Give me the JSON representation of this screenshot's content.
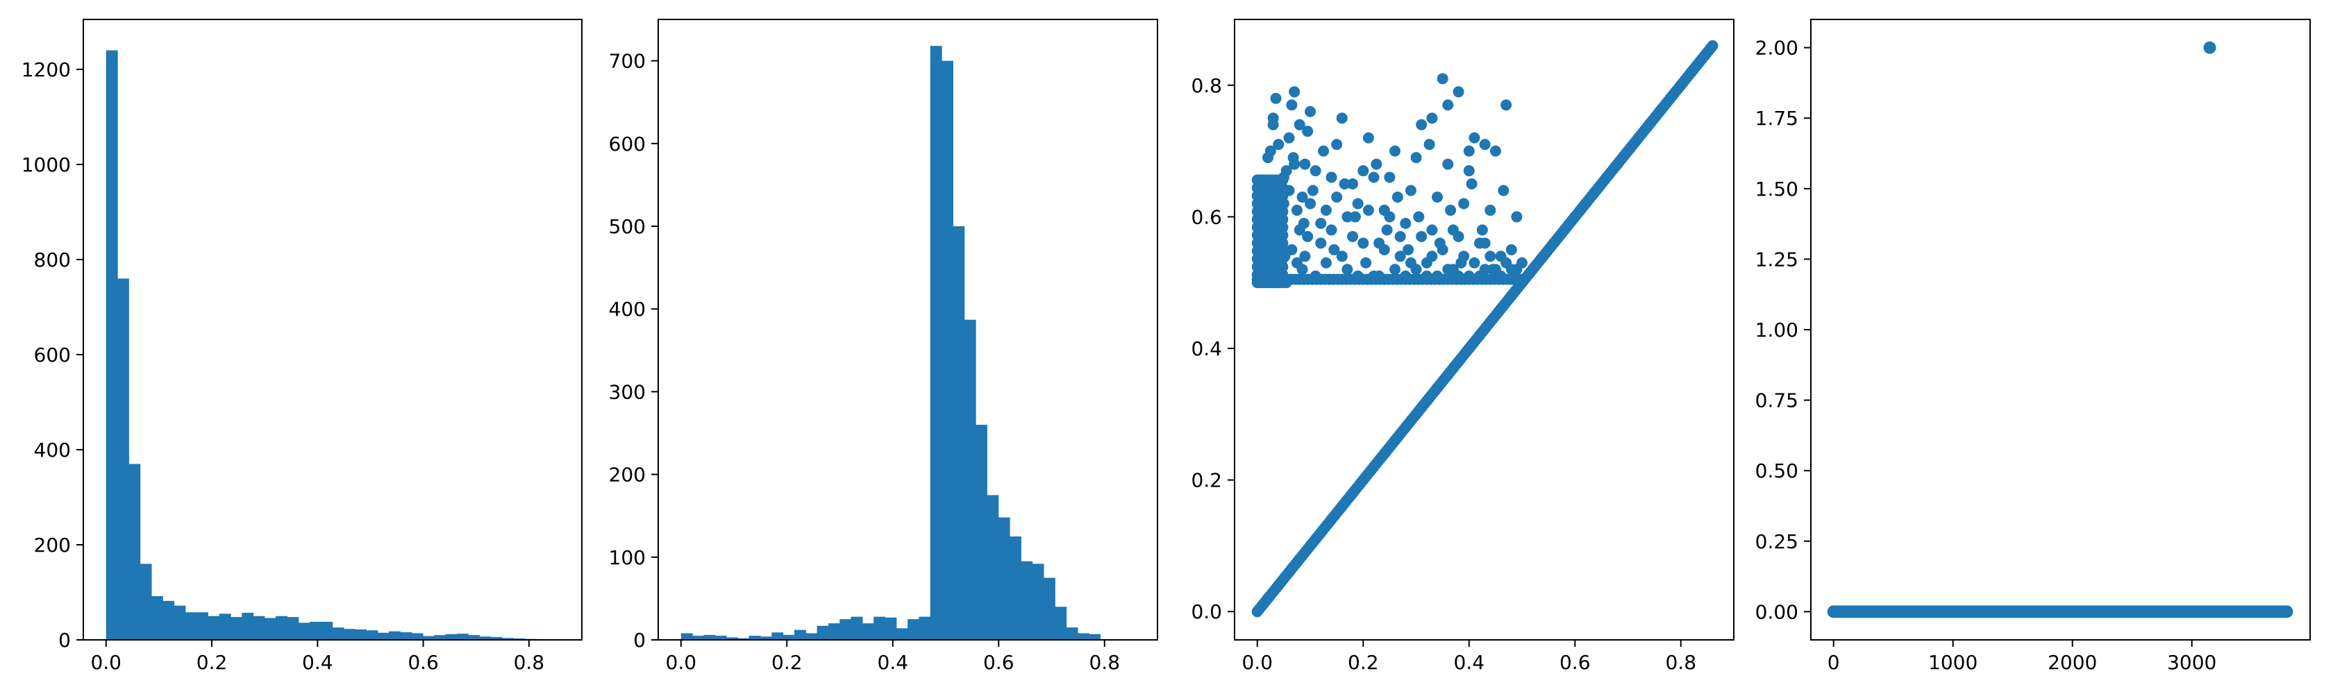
{
  "figure": {
    "color": "#1f77b4"
  },
  "chart_data": [
    {
      "type": "bar",
      "title": "",
      "xlabel": "",
      "ylabel": "",
      "xlim": [
        -0.043,
        0.9
      ],
      "ylim": [
        0,
        1305
      ],
      "grid": false,
      "xticks": [
        0.0,
        0.2,
        0.4,
        0.6,
        0.8
      ],
      "xtick_labels": [
        "0.0",
        "0.2",
        "0.4",
        "0.6",
        "0.8"
      ],
      "yticks": [
        0,
        200,
        400,
        600,
        800,
        1000,
        1200
      ],
      "ytick_labels": [
        "0",
        "200",
        "400",
        "600",
        "800",
        "1000",
        "1200"
      ],
      "bin_start": 0.0,
      "bin_width": 0.0214,
      "values": [
        1240,
        760,
        370,
        160,
        92,
        82,
        72,
        58,
        58,
        50,
        55,
        48,
        57,
        50,
        46,
        50,
        48,
        36,
        38,
        38,
        26,
        23,
        22,
        20,
        15,
        18,
        16,
        14,
        8,
        10,
        12,
        13,
        10,
        7,
        6,
        4,
        3,
        2,
        1,
        1
      ]
    },
    {
      "type": "bar",
      "title": "",
      "xlabel": "",
      "ylabel": "",
      "xlim": [
        -0.043,
        0.9
      ],
      "ylim": [
        0,
        750
      ],
      "grid": false,
      "xticks": [
        0.0,
        0.2,
        0.4,
        0.6,
        0.8
      ],
      "xtick_labels": [
        "0.0",
        "0.2",
        "0.4",
        "0.6",
        "0.8"
      ],
      "yticks": [
        0,
        100,
        200,
        300,
        400,
        500,
        600,
        700
      ],
      "ytick_labels": [
        "0",
        "100",
        "200",
        "300",
        "400",
        "500",
        "600",
        "700"
      ],
      "bin_start": 0.0,
      "bin_width": 0.0214,
      "values": [
        8,
        5,
        6,
        5,
        3,
        2,
        5,
        4,
        9,
        6,
        12,
        8,
        17,
        20,
        25,
        28,
        20,
        28,
        27,
        14,
        25,
        28,
        718,
        700,
        500,
        387,
        260,
        175,
        148,
        125,
        95,
        92,
        75,
        40,
        15,
        8,
        7,
        0,
        0,
        0
      ]
    },
    {
      "type": "scatter",
      "title": "",
      "xlabel": "",
      "ylabel": "",
      "xlim": [
        -0.043,
        0.9
      ],
      "ylim": [
        -0.043,
        0.9
      ],
      "grid": false,
      "xticks": [
        0.0,
        0.2,
        0.4,
        0.6,
        0.8
      ],
      "xtick_labels": [
        "0.0",
        "0.2",
        "0.4",
        "0.6",
        "0.8"
      ],
      "yticks": [
        0.0,
        0.2,
        0.4,
        0.6,
        0.8
      ],
      "ytick_labels": [
        "0.0",
        "0.2",
        "0.4",
        "0.6",
        "0.8"
      ],
      "series": [
        {
          "name": "",
          "values_note": "",
          "points": [
            [
              0.0,
              0.0
            ],
            [
              0.02,
              0.02
            ],
            [
              0.04,
              0.04
            ],
            [
              0.06,
              0.06
            ],
            [
              0.08,
              0.08
            ],
            [
              0.1,
              0.1
            ],
            [
              0.12,
              0.12
            ],
            [
              0.14,
              0.14
            ],
            [
              0.16,
              0.16
            ],
            [
              0.18,
              0.18
            ],
            [
              0.2,
              0.2
            ],
            [
              0.22,
              0.22
            ],
            [
              0.24,
              0.24
            ],
            [
              0.26,
              0.26
            ],
            [
              0.28,
              0.28
            ],
            [
              0.3,
              0.3
            ],
            [
              0.32,
              0.32
            ],
            [
              0.34,
              0.34
            ],
            [
              0.36,
              0.36
            ],
            [
              0.38,
              0.38
            ],
            [
              0.4,
              0.4
            ],
            [
              0.42,
              0.42
            ],
            [
              0.44,
              0.44
            ],
            [
              0.46,
              0.46
            ],
            [
              0.48,
              0.48
            ],
            [
              0.5,
              0.5
            ],
            [
              0.52,
              0.52
            ],
            [
              0.54,
              0.54
            ],
            [
              0.56,
              0.56
            ],
            [
              0.58,
              0.58
            ],
            [
              0.6,
              0.6
            ],
            [
              0.62,
              0.62
            ],
            [
              0.64,
              0.64
            ],
            [
              0.66,
              0.66
            ],
            [
              0.68,
              0.68
            ],
            [
              0.7,
              0.7
            ],
            [
              0.72,
              0.72
            ],
            [
              0.74,
              0.74
            ],
            [
              0.76,
              0.76
            ],
            [
              0.78,
              0.78
            ],
            [
              0.8,
              0.8
            ],
            [
              0.82,
              0.82
            ],
            [
              0.84,
              0.84
            ],
            [
              0.86,
              0.86
            ],
            [
              0.005,
              0.51
            ],
            [
              0.01,
              0.55
            ],
            [
              0.015,
              0.6
            ],
            [
              0.02,
              0.65
            ],
            [
              0.025,
              0.7
            ],
            [
              0.03,
              0.75
            ],
            [
              0.035,
              0.78
            ],
            [
              0.04,
              0.52
            ],
            [
              0.045,
              0.57
            ],
            [
              0.05,
              0.62
            ],
            [
              0.055,
              0.67
            ],
            [
              0.06,
              0.72
            ],
            [
              0.065,
              0.77
            ],
            [
              0.07,
              0.79
            ],
            [
              0.075,
              0.53
            ],
            [
              0.08,
              0.58
            ],
            [
              0.085,
              0.63
            ],
            [
              0.09,
              0.68
            ],
            [
              0.095,
              0.73
            ],
            [
              0.1,
              0.76
            ],
            [
              0.11,
              0.51
            ],
            [
              0.12,
              0.56
            ],
            [
              0.13,
              0.61
            ],
            [
              0.14,
              0.66
            ],
            [
              0.15,
              0.71
            ],
            [
              0.16,
              0.75
            ],
            [
              0.17,
              0.52
            ],
            [
              0.18,
              0.57
            ],
            [
              0.19,
              0.62
            ],
            [
              0.2,
              0.67
            ],
            [
              0.21,
              0.72
            ],
            [
              0.22,
              0.51
            ],
            [
              0.23,
              0.56
            ],
            [
              0.24,
              0.61
            ],
            [
              0.25,
              0.66
            ],
            [
              0.26,
              0.7
            ],
            [
              0.27,
              0.54
            ],
            [
              0.28,
              0.59
            ],
            [
              0.29,
              0.64
            ],
            [
              0.3,
              0.69
            ],
            [
              0.31,
              0.74
            ],
            [
              0.32,
              0.53
            ],
            [
              0.33,
              0.58
            ],
            [
              0.34,
              0.63
            ],
            [
              0.35,
              0.81
            ],
            [
              0.36,
              0.68
            ],
            [
              0.37,
              0.52
            ],
            [
              0.38,
              0.57
            ],
            [
              0.39,
              0.62
            ],
            [
              0.4,
              0.67
            ],
            [
              0.41,
              0.72
            ],
            [
              0.42,
              0.51
            ],
            [
              0.43,
              0.56
            ],
            [
              0.44,
              0.61
            ],
            [
              0.45,
              0.7
            ],
            [
              0.46,
              0.54
            ],
            [
              0.47,
              0.77
            ],
            [
              0.48,
              0.52
            ],
            [
              0.49,
              0.6
            ],
            [
              0.5,
              0.53
            ],
            [
              0.012,
              0.58
            ],
            [
              0.028,
              0.63
            ],
            [
              0.052,
              0.54
            ],
            [
              0.068,
              0.69
            ],
            [
              0.088,
              0.59
            ],
            [
              0.105,
              0.64
            ],
            [
              0.125,
              0.7
            ],
            [
              0.145,
              0.55
            ],
            [
              0.165,
              0.65
            ],
            [
              0.185,
              0.6
            ],
            [
              0.205,
              0.53
            ],
            [
              0.225,
              0.68
            ],
            [
              0.245,
              0.58
            ],
            [
              0.265,
              0.63
            ],
            [
              0.285,
              0.55
            ],
            [
              0.305,
              0.6
            ],
            [
              0.325,
              0.71
            ],
            [
              0.345,
              0.56
            ],
            [
              0.365,
              0.61
            ],
            [
              0.385,
              0.53
            ],
            [
              0.405,
              0.65
            ],
            [
              0.425,
              0.58
            ],
            [
              0.445,
              0.52
            ],
            [
              0.465,
              0.64
            ],
            [
              0.485,
              0.51
            ],
            [
              0.33,
              0.75
            ],
            [
              0.38,
              0.79
            ],
            [
              0.4,
              0.7
            ],
            [
              0.43,
              0.71
            ],
            [
              0.36,
              0.77
            ],
            [
              0.015,
              0.53
            ],
            [
              0.025,
              0.56
            ],
            [
              0.035,
              0.59
            ],
            [
              0.045,
              0.6
            ],
            [
              0.055,
              0.5
            ],
            [
              0.065,
              0.55
            ],
            [
              0.075,
              0.61
            ],
            [
              0.085,
              0.52
            ],
            [
              0.095,
              0.57
            ],
            [
              0.02,
              0.69
            ],
            [
              0.03,
              0.74
            ],
            [
              0.04,
              0.71
            ],
            [
              0.05,
              0.66
            ],
            [
              0.06,
              0.64
            ],
            [
              0.07,
              0.68
            ],
            [
              0.08,
              0.74
            ],
            [
              0.09,
              0.54
            ],
            [
              0.1,
              0.62
            ],
            [
              0.11,
              0.67
            ],
            [
              0.12,
              0.59
            ],
            [
              0.13,
              0.53
            ],
            [
              0.14,
              0.58
            ],
            [
              0.15,
              0.63
            ],
            [
              0.16,
              0.54
            ],
            [
              0.17,
              0.6
            ],
            [
              0.18,
              0.65
            ],
            [
              0.19,
              0.51
            ],
            [
              0.2,
              0.56
            ],
            [
              0.21,
              0.61
            ],
            [
              0.22,
              0.66
            ],
            [
              0.23,
              0.51
            ],
            [
              0.24,
              0.55
            ],
            [
              0.25,
              0.6
            ],
            [
              0.26,
              0.52
            ],
            [
              0.27,
              0.57
            ],
            [
              0.28,
              0.51
            ],
            [
              0.29,
              0.53
            ],
            [
              0.3,
              0.52
            ],
            [
              0.31,
              0.57
            ],
            [
              0.32,
              0.51
            ],
            [
              0.33,
              0.54
            ],
            [
              0.34,
              0.51
            ],
            [
              0.35,
              0.55
            ],
            [
              0.36,
              0.52
            ],
            [
              0.37,
              0.58
            ],
            [
              0.38,
              0.51
            ],
            [
              0.39,
              0.54
            ],
            [
              0.4,
              0.51
            ],
            [
              0.41,
              0.53
            ],
            [
              0.42,
              0.56
            ],
            [
              0.43,
              0.52
            ],
            [
              0.44,
              0.54
            ],
            [
              0.45,
              0.52
            ],
            [
              0.46,
              0.51
            ],
            [
              0.47,
              0.53
            ],
            [
              0.48,
              0.55
            ],
            [
              0.49,
              0.52
            ]
          ]
        }
      ]
    },
    {
      "type": "scatter",
      "title": "",
      "xlabel": "",
      "ylabel": "",
      "xlim": [
        -190,
        3990
      ],
      "ylim": [
        -0.1,
        2.1
      ],
      "grid": false,
      "xticks": [
        0,
        1000,
        2000,
        3000
      ],
      "xtick_labels": [
        "0",
        "1000",
        "2000",
        "3000"
      ],
      "yticks": [
        0.0,
        0.25,
        0.5,
        0.75,
        1.0,
        1.25,
        1.5,
        1.75,
        2.0
      ],
      "ytick_labels": [
        "0.00",
        "0.25",
        "0.50",
        "0.75",
        "1.00",
        "1.25",
        "1.50",
        "1.75",
        "2.00"
      ],
      "series": [
        {
          "name": "",
          "x_range": [
            0,
            3800
          ],
          "y": 0.0,
          "outlier": [
            3150,
            2.0
          ]
        }
      ]
    }
  ]
}
